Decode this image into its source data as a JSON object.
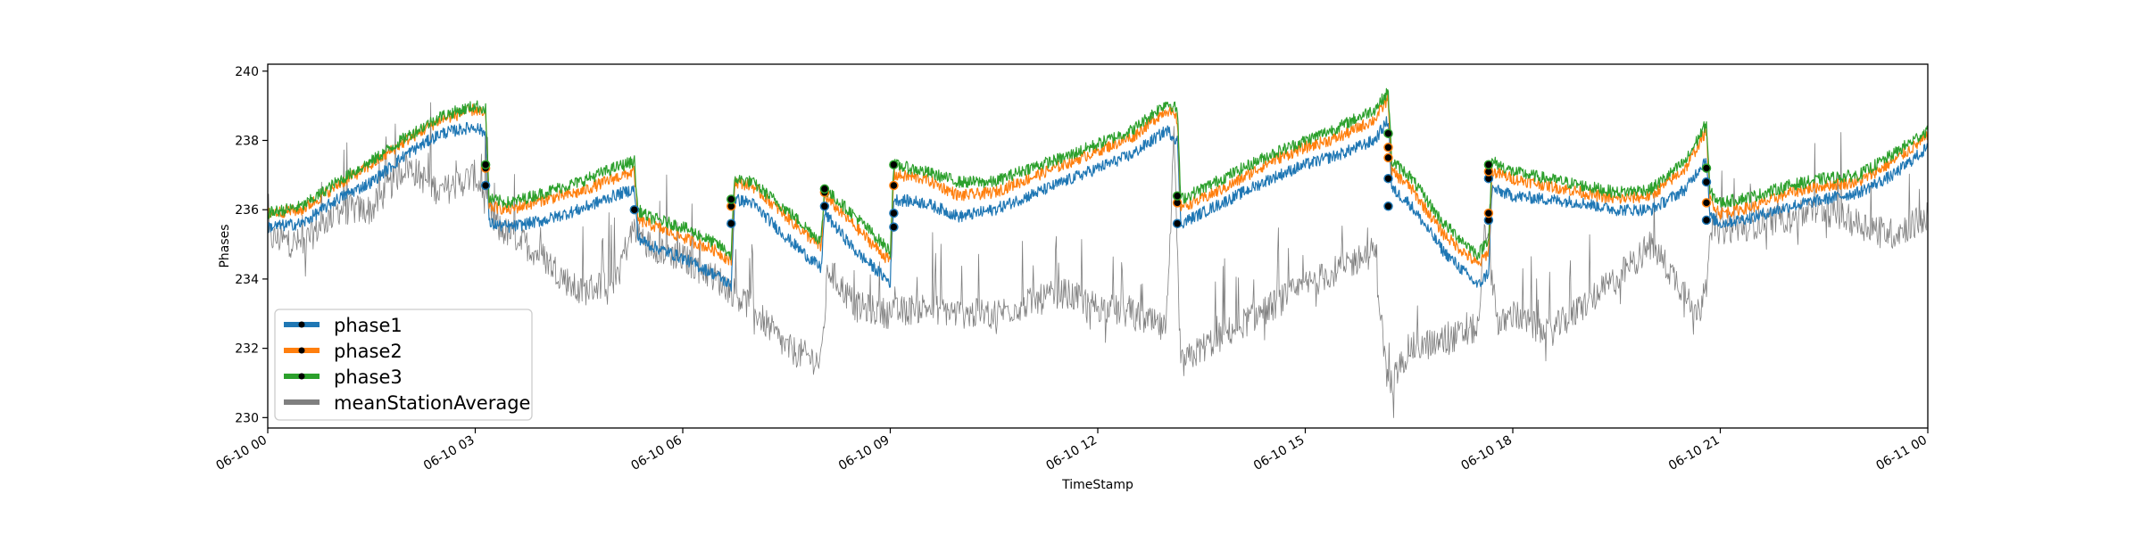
{
  "chart_data": {
    "type": "line",
    "title": "",
    "xlabel": "TimeStamp",
    "ylabel": "Phases",
    "x_range": [
      "2021-06-10 00:00",
      "2021-06-11 00:00"
    ],
    "ylim": [
      229.7,
      240.2
    ],
    "yticks": [
      230,
      232,
      234,
      236,
      238,
      240
    ],
    "xticks": [
      {
        "hours": 0,
        "label": "06-10 00"
      },
      {
        "hours": 3,
        "label": "06-10 03"
      },
      {
        "hours": 6,
        "label": "06-10 06"
      },
      {
        "hours": 9,
        "label": "06-10 09"
      },
      {
        "hours": 12,
        "label": "06-10 12"
      },
      {
        "hours": 15,
        "label": "06-10 15"
      },
      {
        "hours": 18,
        "label": "06-10 18"
      },
      {
        "hours": 21,
        "label": "06-10 21"
      },
      {
        "hours": 24,
        "label": "06-11 00"
      }
    ],
    "grid": false,
    "legend_position": "bottom-left",
    "series": [
      {
        "name": "phase1",
        "color": "#1f77b4",
        "x_hours": [
          0,
          0.5,
          1,
          1.5,
          2,
          2.5,
          3,
          3.15,
          3.2,
          3.5,
          4,
          4.5,
          5,
          5.3,
          5.35,
          5.5,
          6,
          6.5,
          6.7,
          6.75,
          7,
          7.5,
          8,
          8.05,
          8.5,
          9,
          9.05,
          9.5,
          10,
          10.5,
          11,
          11.5,
          12,
          12.5,
          13,
          13.15,
          13.2,
          13.5,
          14,
          14.5,
          15,
          15.5,
          16,
          16.2,
          16.25,
          16.5,
          17,
          17.5,
          17.65,
          17.7,
          18,
          18.5,
          19,
          19.5,
          20,
          20.5,
          20.8,
          20.85,
          21,
          21.5,
          22,
          22.5,
          23,
          23.5,
          24
        ],
        "y": [
          235.5,
          235.6,
          236.3,
          236.8,
          237.6,
          238.2,
          238.4,
          238.2,
          235.6,
          235.5,
          235.7,
          236.0,
          236.4,
          236.6,
          235.2,
          235.0,
          234.6,
          234.1,
          233.8,
          236.3,
          236.2,
          235.2,
          234.3,
          235.9,
          234.8,
          233.9,
          236.3,
          236.2,
          235.8,
          236.0,
          236.4,
          236.8,
          237.2,
          237.6,
          238.3,
          238.0,
          235.6,
          235.9,
          236.4,
          236.9,
          237.3,
          237.6,
          238.0,
          238.6,
          236.6,
          236.2,
          234.8,
          233.8,
          234.2,
          236.6,
          236.4,
          236.3,
          236.2,
          236.0,
          236.0,
          236.6,
          237.5,
          235.8,
          235.6,
          235.8,
          236.1,
          236.3,
          236.5,
          237.0,
          237.8
        ]
      },
      {
        "name": "phase2",
        "color": "#ff7f0e",
        "x_hours": [
          0,
          0.5,
          1,
          1.5,
          2,
          2.5,
          3,
          3.15,
          3.2,
          3.5,
          4,
          4.5,
          5,
          5.3,
          5.35,
          5.5,
          6,
          6.5,
          6.7,
          6.75,
          7,
          7.5,
          8,
          8.05,
          8.5,
          9,
          9.05,
          9.5,
          10,
          10.5,
          11,
          11.5,
          12,
          12.5,
          13,
          13.15,
          13.2,
          13.5,
          14,
          14.5,
          15,
          15.5,
          16,
          16.2,
          16.25,
          16.5,
          17,
          17.5,
          17.65,
          17.7,
          18,
          18.5,
          19,
          19.5,
          20,
          20.5,
          20.8,
          20.85,
          21,
          21.5,
          22,
          22.5,
          23,
          23.5,
          24
        ],
        "y": [
          235.9,
          236.0,
          236.7,
          237.3,
          238.0,
          238.6,
          238.9,
          238.7,
          236.1,
          236.0,
          236.3,
          236.5,
          236.9,
          237.1,
          235.7,
          235.6,
          235.2,
          234.8,
          234.5,
          236.8,
          236.7,
          235.8,
          234.9,
          236.4,
          235.5,
          234.5,
          237.0,
          236.9,
          236.4,
          236.5,
          236.9,
          237.3,
          237.7,
          238.1,
          238.9,
          238.6,
          236.1,
          236.3,
          236.8,
          237.4,
          237.8,
          238.1,
          238.6,
          239.2,
          237.1,
          236.7,
          235.3,
          234.4,
          234.8,
          237.1,
          236.9,
          236.7,
          236.5,
          236.3,
          236.4,
          237.2,
          238.3,
          236.3,
          235.9,
          236.1,
          236.5,
          236.7,
          236.8,
          237.4,
          238.1
        ]
      },
      {
        "name": "phase3",
        "color": "#2ca02c",
        "x_hours": [
          0,
          0.5,
          1,
          1.5,
          2,
          2.5,
          3,
          3.15,
          3.2,
          3.5,
          4,
          4.5,
          5,
          5.3,
          5.35,
          5.5,
          6,
          6.5,
          6.7,
          6.75,
          7,
          7.5,
          8,
          8.05,
          8.5,
          9,
          9.05,
          9.5,
          10,
          10.5,
          11,
          11.5,
          12,
          12.5,
          13,
          13.15,
          13.2,
          13.5,
          14,
          14.5,
          15,
          15.5,
          16,
          16.2,
          16.25,
          16.5,
          17,
          17.5,
          17.65,
          17.7,
          18,
          18.5,
          19,
          19.5,
          20,
          20.5,
          20.8,
          20.85,
          21,
          21.5,
          22,
          22.5,
          23,
          23.5,
          24
        ],
        "y": [
          235.9,
          236.1,
          236.8,
          237.4,
          238.1,
          238.7,
          239.0,
          238.9,
          236.3,
          236.2,
          236.5,
          236.8,
          237.2,
          237.4,
          236.0,
          235.8,
          235.5,
          235.0,
          234.7,
          236.9,
          236.8,
          236.0,
          235.1,
          236.6,
          235.8,
          234.8,
          237.3,
          237.1,
          236.8,
          236.8,
          237.2,
          237.5,
          237.9,
          238.3,
          239.1,
          238.9,
          236.3,
          236.6,
          237.1,
          237.6,
          238.0,
          238.4,
          238.9,
          239.4,
          237.4,
          237.0,
          235.6,
          234.7,
          235.2,
          237.4,
          237.1,
          236.9,
          236.7,
          236.5,
          236.6,
          237.4,
          238.5,
          236.5,
          236.2,
          236.4,
          236.7,
          236.9,
          237.0,
          237.6,
          238.3
        ]
      },
      {
        "name": "meanStationAverage",
        "color": "#7f7f7f",
        "x_hours": [
          0,
          0.5,
          1,
          1.5,
          2,
          2.5,
          3,
          3.3,
          3.6,
          4,
          4.5,
          5,
          5.3,
          5.5,
          6,
          6.5,
          7,
          7.5,
          8,
          8.1,
          8.5,
          9,
          9.5,
          10,
          10.5,
          11,
          11.5,
          12,
          12.5,
          13,
          13.1,
          13.2,
          13.5,
          14,
          14.5,
          15,
          15.5,
          16,
          16.2,
          16.5,
          17,
          17.5,
          17.6,
          17.8,
          18,
          18.5,
          19,
          19.5,
          20,
          20.5,
          20.7,
          20.9,
          21,
          21.5,
          22,
          22.5,
          23,
          23.5,
          24
        ],
        "y": [
          235.2,
          235.0,
          236.0,
          236.0,
          237.3,
          236.5,
          237.0,
          235.5,
          235.2,
          234.6,
          233.6,
          234.0,
          235.5,
          235.0,
          234.6,
          234.0,
          233.2,
          232.0,
          231.6,
          234.3,
          233.2,
          233.0,
          233.2,
          233.0,
          233.0,
          233.3,
          233.6,
          233.2,
          233.0,
          232.5,
          238.0,
          231.5,
          232.0,
          232.6,
          233.2,
          233.8,
          234.3,
          234.8,
          230.8,
          232.0,
          232.2,
          232.6,
          235.6,
          232.6,
          233.0,
          232.4,
          233.2,
          234.0,
          235.0,
          233.6,
          233.0,
          235.6,
          235.4,
          235.6,
          235.8,
          236.0,
          235.6,
          235.3,
          235.8
        ]
      }
    ],
    "markers": [
      {
        "series": "phase1",
        "x_hours": 3.15,
        "y": 236.7
      },
      {
        "series": "phase2",
        "x_hours": 3.15,
        "y": 237.2
      },
      {
        "series": "phase3",
        "x_hours": 3.15,
        "y": 237.3
      },
      {
        "series": "phase1",
        "x_hours": 5.3,
        "y": 236.0
      },
      {
        "series": "phase1",
        "x_hours": 6.7,
        "y": 235.6
      },
      {
        "series": "phase2",
        "x_hours": 6.7,
        "y": 236.1
      },
      {
        "series": "phase3",
        "x_hours": 6.7,
        "y": 236.3
      },
      {
        "series": "phase1",
        "x_hours": 8.05,
        "y": 236.1
      },
      {
        "series": "phase2",
        "x_hours": 8.05,
        "y": 236.5
      },
      {
        "series": "phase3",
        "x_hours": 8.05,
        "y": 236.6
      },
      {
        "series": "phase1",
        "x_hours": 9.05,
        "y": 235.5
      },
      {
        "series": "phase1",
        "x_hours": 9.05,
        "y": 235.9
      },
      {
        "series": "phase2",
        "x_hours": 9.05,
        "y": 236.7
      },
      {
        "series": "phase3",
        "x_hours": 9.05,
        "y": 237.3
      },
      {
        "series": "phase1",
        "x_hours": 13.15,
        "y": 235.6
      },
      {
        "series": "phase2",
        "x_hours": 13.15,
        "y": 236.2
      },
      {
        "series": "phase3",
        "x_hours": 13.15,
        "y": 236.4
      },
      {
        "series": "phase1",
        "x_hours": 16.2,
        "y": 236.1
      },
      {
        "series": "phase1",
        "x_hours": 16.2,
        "y": 236.9
      },
      {
        "series": "phase2",
        "x_hours": 16.2,
        "y": 237.5
      },
      {
        "series": "phase2",
        "x_hours": 16.2,
        "y": 237.8
      },
      {
        "series": "phase3",
        "x_hours": 16.2,
        "y": 238.2
      },
      {
        "series": "phase1",
        "x_hours": 17.65,
        "y": 235.7
      },
      {
        "series": "phase2",
        "x_hours": 17.65,
        "y": 235.9
      },
      {
        "series": "phase1",
        "x_hours": 17.65,
        "y": 236.9
      },
      {
        "series": "phase2",
        "x_hours": 17.65,
        "y": 237.1
      },
      {
        "series": "phase3",
        "x_hours": 17.65,
        "y": 237.3
      },
      {
        "series": "phase1",
        "x_hours": 20.8,
        "y": 235.7
      },
      {
        "series": "phase2",
        "x_hours": 20.8,
        "y": 236.2
      },
      {
        "series": "phase1",
        "x_hours": 20.8,
        "y": 236.8
      },
      {
        "series": "phase3",
        "x_hours": 20.8,
        "y": 237.2
      }
    ]
  }
}
